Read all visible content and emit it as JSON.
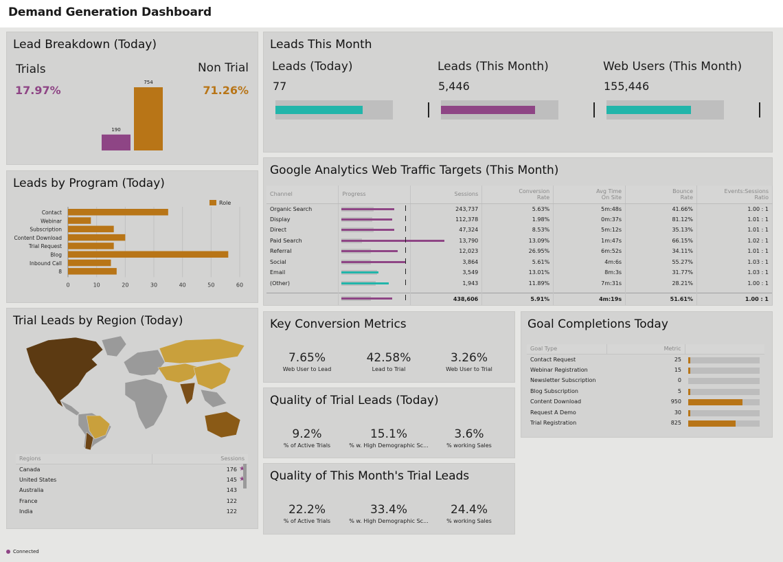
{
  "app": {
    "title": "Demand Generation Dashboard"
  },
  "colors": {
    "purple": "#8e4585",
    "orange": "#b87517",
    "teal": "#22b5aa"
  },
  "lead_breakdown": {
    "title": "Lead Breakdown (Today)",
    "trials_label": "Trials",
    "trials_pct": "17.97%",
    "nontrial_label": "Non Trial",
    "nontrial_pct": "71.26%",
    "chart_data": {
      "type": "bar",
      "categories": [
        "Trials",
        "Non Trial"
      ],
      "values": [
        190,
        754
      ]
    },
    "labels": [
      "190",
      "754"
    ]
  },
  "leads_month": {
    "title": "Leads This Month",
    "items": [
      {
        "label": "Leads (Today)",
        "value": "77",
        "fill": 0.74,
        "color": "teal"
      },
      {
        "label": "Leads (This Month)",
        "value": "5,446",
        "fill": 0.8,
        "color": "purple"
      },
      {
        "label": "Web Users (This Month)",
        "value": "155,446",
        "fill": 0.72,
        "color": "teal"
      }
    ]
  },
  "ga": {
    "title": "Google Analytics Web Traffic Targets (This Month)",
    "headers": [
      "Channel",
      "Progress",
      "Sessions",
      "Conversion Rate",
      "Avg Time On Site",
      "Bounce Rate",
      "Events:Sessions Ratio"
    ],
    "headers_split": [
      [
        "Channel",
        ""
      ],
      [
        "Progress",
        ""
      ],
      [
        "Sessions",
        ""
      ],
      [
        "Conversion",
        "Rate"
      ],
      [
        "Avg Time",
        "On Site"
      ],
      [
        "Bounce",
        "Rate"
      ],
      [
        "Events:Sessions",
        "Ratio"
      ]
    ],
    "rows": [
      {
        "channel": "Organic Search",
        "sessions": "243,737",
        "conv": "5.63%",
        "time": "5m:48s",
        "bounce": "41.66%",
        "ratio": "1.00 : 1",
        "track": 0.55,
        "fill": 0.55,
        "color": "purple"
      },
      {
        "channel": "Display",
        "sessions": "112,378",
        "conv": "1.98%",
        "time": "0m:37s",
        "bounce": "81.12%",
        "ratio": "1.01 : 1",
        "track": 0.52,
        "fill": 0.5,
        "color": "purple"
      },
      {
        "channel": "Direct",
        "sessions": "47,324",
        "conv": "8.53%",
        "time": "5m:12s",
        "bounce": "35.13%",
        "ratio": "1.01 : 1",
        "track": 0.55,
        "fill": 0.55,
        "color": "purple"
      },
      {
        "channel": "Paid Search",
        "sessions": "13,790",
        "conv": "13.09%",
        "time": "1m:47s",
        "bounce": "66.15%",
        "ratio": "1.02 : 1",
        "track": 0.35,
        "fill": 0.68,
        "color": "purple"
      },
      {
        "channel": "Referral",
        "sessions": "12,023",
        "conv": "26.95%",
        "time": "6m:52s",
        "bounce": "34.11%",
        "ratio": "1.01 : 1",
        "track": 0.5,
        "fill": 0.53,
        "color": "purple"
      },
      {
        "channel": "Social",
        "sessions": "3,864",
        "conv": "5.61%",
        "time": "4m:6s",
        "bounce": "55.27%",
        "ratio": "1.03 : 1",
        "track": 0.5,
        "fill": 0.6,
        "color": "purple"
      },
      {
        "channel": "Email",
        "sessions": "3,549",
        "conv": "13.01%",
        "time": "8m:3s",
        "bounce": "31.77%",
        "ratio": "1.03 : 1",
        "track": 0.6,
        "fill": 0.42,
        "color": "teal"
      },
      {
        "channel": "(Other)",
        "sessions": "1,943",
        "conv": "11.89%",
        "time": "7m:31s",
        "bounce": "28.21%",
        "ratio": "1.00 : 1",
        "track": 0.58,
        "fill": 0.52,
        "color": "teal"
      }
    ],
    "total": {
      "sessions": "438,606",
      "conv": "5.91%",
      "time": "4m:19s",
      "bounce": "51.61%",
      "ratio": "1.00 : 1",
      "track": 0.5,
      "fill": 0.48,
      "color": "purple"
    }
  },
  "program": {
    "title": "Leads by Program (Today)",
    "legend": "Role",
    "chart_data": {
      "type": "bar",
      "orientation": "horizontal",
      "categories": [
        "Contact",
        "Webinar",
        "Subscription",
        "Content Download",
        "Trial Request",
        "Blog",
        "Inbound Call",
        "8"
      ],
      "values": [
        35,
        8,
        16,
        20,
        16,
        56,
        15,
        17
      ],
      "xlim": [
        0,
        60
      ],
      "ticks": [
        "0",
        "10",
        "20",
        "30",
        "40",
        "50",
        "60"
      ],
      "grid": true,
      "legend_position": "top-right"
    }
  },
  "region": {
    "title": "Trial Leads by Region (Today)",
    "headers": [
      "Regions",
      "Sessions"
    ],
    "rows": [
      {
        "name": "Canada",
        "value": "176",
        "star": true
      },
      {
        "name": "United States",
        "value": "145",
        "star": true
      },
      {
        "name": "Australia",
        "value": "143",
        "star": false
      },
      {
        "name": "France",
        "value": "122",
        "star": false
      },
      {
        "name": "India",
        "value": "122",
        "star": false
      }
    ]
  },
  "kcm": {
    "title": "Key Conversion Metrics",
    "items": [
      {
        "value": "7.65%",
        "label": "Web User to Lead"
      },
      {
        "value": "42.58%",
        "label": "Lead to Trial"
      },
      {
        "value": "3.26%",
        "label": "Web User to Trial"
      }
    ]
  },
  "qtl": {
    "title": "Quality of Trial Leads (Today)",
    "items": [
      {
        "value": "9.2%",
        "label": "% of Active Trials"
      },
      {
        "value": "15.1%",
        "label": "% w. High Demographic Sc..."
      },
      {
        "value": "3.6%",
        "label": "% working Sales"
      }
    ]
  },
  "qmt": {
    "title": "Quality of This Month's Trial Leads",
    "items": [
      {
        "value": "22.2%",
        "label": "% of Active Trials"
      },
      {
        "value": "33.4%",
        "label": "% w. High Demographic Sc..."
      },
      {
        "value": "24.4%",
        "label": "% working Sales"
      }
    ]
  },
  "goals": {
    "title": "Goal Completions Today",
    "headers": [
      "Goal Type",
      "Metric"
    ],
    "rows": [
      {
        "name": "Contact Request",
        "value": "25",
        "fill": 0.025
      },
      {
        "name": "Webinar Registration",
        "value": "15",
        "fill": 0.015
      },
      {
        "name": "Newsletter Subscription",
        "value": "0",
        "fill": 0
      },
      {
        "name": "Blog Subscription",
        "value": "5",
        "fill": 0.01
      },
      {
        "name": "Content Download",
        "value": "950",
        "fill": 0.76
      },
      {
        "name": "Request A Demo",
        "value": "30",
        "fill": 0.02
      },
      {
        "name": "Trial Registration",
        "value": "825",
        "fill": 0.66
      }
    ]
  },
  "status": {
    "text": "Connected"
  }
}
